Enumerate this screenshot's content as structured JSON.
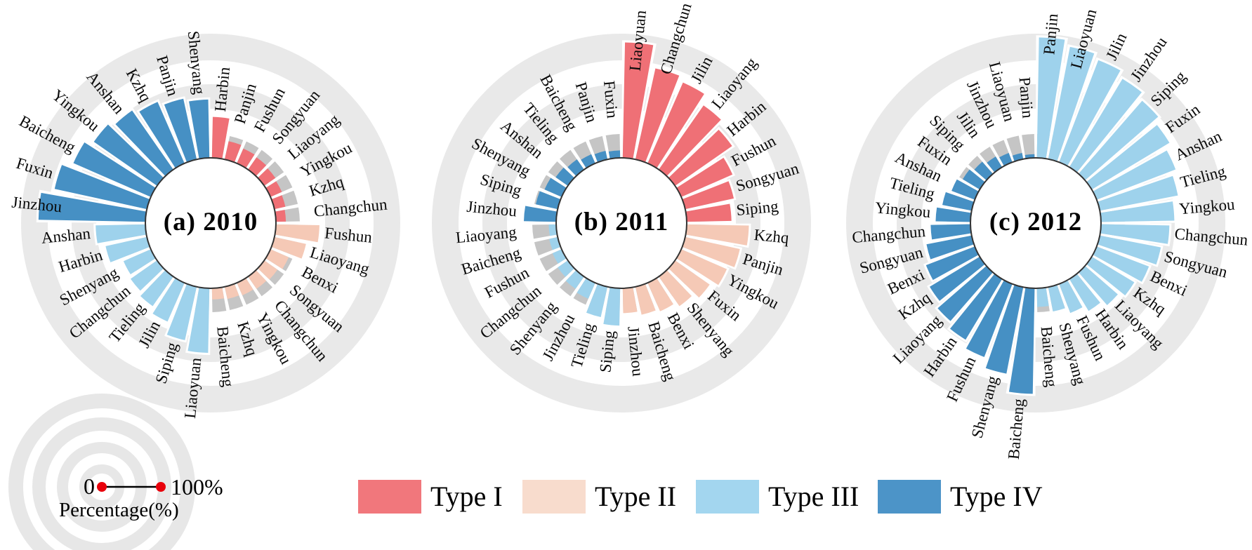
{
  "figure": {
    "background": "#ffffff",
    "ring_gridlines_percent": [
      20,
      40,
      60,
      80,
      100
    ]
  },
  "legend": {
    "items": [
      {
        "label": "Type I",
        "color": "#F1777C"
      },
      {
        "label": "Type II",
        "color": "#F8DCCD"
      },
      {
        "label": "Type III",
        "color": "#A3D6EF"
      },
      {
        "label": "Type IV",
        "color": "#4C94C8"
      }
    ]
  },
  "type_colors": {
    "I": "#EF7076",
    "II": "#F5C9B6",
    "III": "#9ED2EC",
    "IV": "#4690C4"
  },
  "scale_legend": {
    "zero_label": "0",
    "max_label": "100%",
    "caption": "Percentage(%)",
    "dot_color": "#E8000B",
    "line_color": "#000000"
  },
  "chart_data": [
    {
      "type": "radial_bar",
      "title": "(a) 2010",
      "units": "percent",
      "rlim": [
        0,
        100
      ],
      "direction": "clockwise-from-top",
      "slots": [
        {
          "city": "Harbin",
          "type": "I",
          "value": 33
        },
        {
          "city": "Panjin",
          "type": "I",
          "value": 15
        },
        {
          "city": "Fushun",
          "type": "I",
          "value": 13
        },
        {
          "city": "Songyuan",
          "type": "I",
          "value": 12
        },
        {
          "city": "Liaoyang",
          "type": "I",
          "value": 11
        },
        {
          "city": "Yingkou",
          "type": "I",
          "value": 10
        },
        {
          "city": "Kzhq",
          "type": "I",
          "value": 9
        },
        {
          "city": "Changchun",
          "type": "I",
          "value": 8
        },
        {
          "city": "Fushun",
          "type": "II",
          "value": 35
        },
        {
          "city": "Liaoyang",
          "type": "II",
          "value": 26
        },
        {
          "city": "Benxi",
          "type": "II",
          "value": 16
        },
        {
          "city": "Songyuan",
          "type": "II",
          "value": 13
        },
        {
          "city": "Changchun",
          "type": "II",
          "value": 12
        },
        {
          "city": "Yingkou",
          "type": "II",
          "value": 11
        },
        {
          "city": "Kzhq",
          "type": "II",
          "value": 10
        },
        {
          "city": "Baicheng",
          "type": "II",
          "value": 9
        },
        {
          "city": "Liaoyuan",
          "type": "III",
          "value": 52
        },
        {
          "city": "Siping",
          "type": "III",
          "value": 44
        },
        {
          "city": "Jilin",
          "type": "III",
          "value": 34
        },
        {
          "city": "Tieling",
          "type": "III",
          "value": 29
        },
        {
          "city": "Changchun",
          "type": "III",
          "value": 26
        },
        {
          "city": "Shenyang",
          "type": "III",
          "value": 24
        },
        {
          "city": "Harbin",
          "type": "III",
          "value": 34
        },
        {
          "city": "Anshan",
          "type": "III",
          "value": 40
        },
        {
          "city": "Jinzhou",
          "type": "IV",
          "value": 86
        },
        {
          "city": "Fuxin",
          "type": "IV",
          "value": 76
        },
        {
          "city": "Baicheng",
          "type": "IV",
          "value": 68
        },
        {
          "city": "Yingkou",
          "type": "IV",
          "value": 62
        },
        {
          "city": "Anshan",
          "type": "IV",
          "value": 58
        },
        {
          "city": "Kzhq",
          "type": "IV",
          "value": 54
        },
        {
          "city": "Panjin",
          "type": "IV",
          "value": 50
        },
        {
          "city": "Shenyang",
          "type": "IV",
          "value": 47
        }
      ]
    },
    {
      "type": "radial_bar",
      "title": "(b) 2011",
      "units": "percent",
      "rlim": [
        0,
        100
      ],
      "direction": "clockwise-from-top",
      "slots": [
        {
          "city": "Liaoyuan",
          "type": "I",
          "value": 93
        },
        {
          "city": "Changchun",
          "type": "I",
          "value": 75
        },
        {
          "city": "Jilin",
          "type": "I",
          "value": 71
        },
        {
          "city": "Liaoyang",
          "type": "I",
          "value": 63
        },
        {
          "city": "Harbin",
          "type": "I",
          "value": 56
        },
        {
          "city": "Fushun",
          "type": "I",
          "value": 45
        },
        {
          "city": "Songyuan",
          "type": "I",
          "value": 40
        },
        {
          "city": "Siping",
          "type": "I",
          "value": 36
        },
        {
          "city": "Kzhq",
          "type": "II",
          "value": 50
        },
        {
          "city": "Panjin",
          "type": "II",
          "value": 45
        },
        {
          "city": "Yingkou",
          "type": "II",
          "value": 40
        },
        {
          "city": "Fuxin",
          "type": "II",
          "value": 34
        },
        {
          "city": "Shenyang",
          "type": "II",
          "value": 29
        },
        {
          "city": "Benxi",
          "type": "II",
          "value": 25
        },
        {
          "city": "Baicheng",
          "type": "II",
          "value": 23
        },
        {
          "city": "Jinzhou",
          "type": "II",
          "value": 20
        },
        {
          "city": "Siping",
          "type": "III",
          "value": 30
        },
        {
          "city": "Tieling",
          "type": "III",
          "value": 25
        },
        {
          "city": "Jinzhou",
          "type": "III",
          "value": 14
        },
        {
          "city": "Shenyang",
          "type": "III",
          "value": 12
        },
        {
          "city": "Changchun",
          "type": "III",
          "value": 10
        },
        {
          "city": "Fushun",
          "type": "III",
          "value": 8
        },
        {
          "city": "Baicheng",
          "type": "III",
          "value": 7
        },
        {
          "city": "Liaoyang",
          "type": "III",
          "value": 6
        },
        {
          "city": "Jinzhou",
          "type": "IV",
          "value": 26
        },
        {
          "city": "Siping",
          "type": "IV",
          "value": 18
        },
        {
          "city": "Shenyang",
          "type": "IV",
          "value": 15
        },
        {
          "city": "Anshan",
          "type": "IV",
          "value": 12
        },
        {
          "city": "Tieling",
          "type": "IV",
          "value": 10
        },
        {
          "city": "Baicheng",
          "type": "IV",
          "value": 8
        },
        {
          "city": "Panjin",
          "type": "IV",
          "value": 7
        },
        {
          "city": "Fuxin",
          "type": "IV",
          "value": 6
        }
      ]
    },
    {
      "type": "radial_bar",
      "title": "(c) 2012",
      "units": "percent",
      "rlim": [
        0,
        100
      ],
      "direction": "clockwise-from-top",
      "slots": [
        {
          "city": "Panjin",
          "type": "III",
          "value": 97
        },
        {
          "city": "Liaoyuan",
          "type": "III",
          "value": 92
        },
        {
          "city": "Jilin",
          "type": "III",
          "value": 88
        },
        {
          "city": "Jinzhou",
          "type": "III",
          "value": 83
        },
        {
          "city": "Siping",
          "type": "III",
          "value": 78
        },
        {
          "city": "Fuxin",
          "type": "III",
          "value": 73
        },
        {
          "city": "Anshan",
          "type": "III",
          "value": 68
        },
        {
          "city": "Tieling",
          "type": "III",
          "value": 64
        },
        {
          "city": "Yingkou",
          "type": "III",
          "value": 59
        },
        {
          "city": "Changchun",
          "type": "III",
          "value": 55
        },
        {
          "city": "Songyuan",
          "type": "III",
          "value": 50
        },
        {
          "city": "Benxi",
          "type": "III",
          "value": 45
        },
        {
          "city": "Kzhq",
          "type": "III",
          "value": 40
        },
        {
          "city": "Liaoyang",
          "type": "III",
          "value": 35
        },
        {
          "city": "Harbin",
          "type": "III",
          "value": 30
        },
        {
          "city": "Fushun",
          "type": "III",
          "value": 25
        },
        {
          "city": "Shenyang",
          "type": "III",
          "value": 20
        },
        {
          "city": "Baicheng",
          "type": "III",
          "value": 15
        },
        {
          "city": "Baicheng",
          "type": "IV",
          "value": 85
        },
        {
          "city": "Shenyang",
          "type": "IV",
          "value": 71
        },
        {
          "city": "Fushun",
          "type": "IV",
          "value": 63
        },
        {
          "city": "Harbin",
          "type": "IV",
          "value": 57
        },
        {
          "city": "Liaoyang",
          "type": "IV",
          "value": 52
        },
        {
          "city": "Kzhq",
          "type": "IV",
          "value": 47
        },
        {
          "city": "Benxi",
          "type": "IV",
          "value": 42
        },
        {
          "city": "Songyuan",
          "type": "IV",
          "value": 37
        },
        {
          "city": "Changchun",
          "type": "IV",
          "value": 32
        },
        {
          "city": "Yingkou",
          "type": "IV",
          "value": 28
        },
        {
          "city": "Tieling",
          "type": "IV",
          "value": 24
        },
        {
          "city": "Anshan",
          "type": "IV",
          "value": 20
        },
        {
          "city": "Fuxin",
          "type": "IV",
          "value": 16
        },
        {
          "city": "Siping",
          "type": "IV",
          "value": 13
        },
        {
          "city": "Jilin",
          "type": "IV",
          "value": 10
        },
        {
          "city": "Jinzhou",
          "type": "IV",
          "value": 8
        },
        {
          "city": "Liaoyuan",
          "type": "IV",
          "value": 5
        },
        {
          "city": "Panjin",
          "type": "IV",
          "value": 3
        }
      ]
    }
  ]
}
